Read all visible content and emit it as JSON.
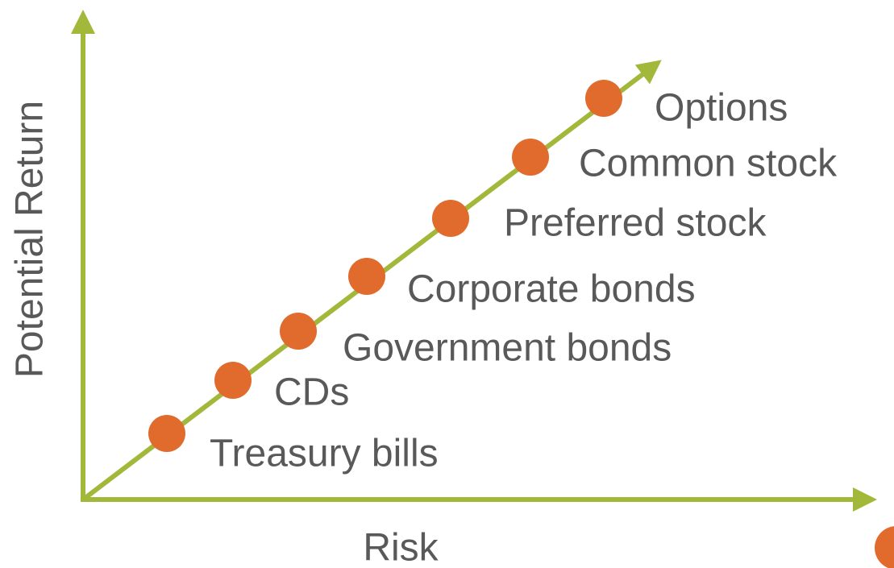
{
  "axes": {
    "x_label": "Risk",
    "y_label": "Potential Return"
  },
  "nodes": [
    {
      "label": "Treasury bills"
    },
    {
      "label": "CDs"
    },
    {
      "label": "Government bonds"
    },
    {
      "label": "Corporate bonds"
    },
    {
      "label": "Preferred stock"
    },
    {
      "label": "Common stock"
    },
    {
      "label": "Options"
    }
  ]
}
